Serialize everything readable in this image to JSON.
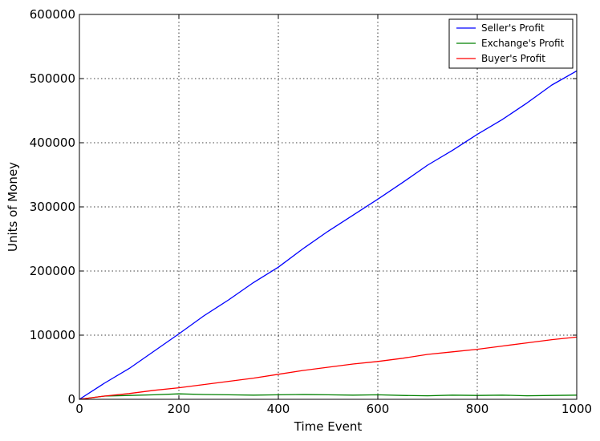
{
  "chart_data": {
    "type": "line",
    "title": "",
    "xlabel": "Time Event",
    "ylabel": "Units of Money",
    "xlim": [
      0,
      1000
    ],
    "ylim": [
      0,
      600000
    ],
    "x_ticks": [
      0,
      200,
      400,
      600,
      800,
      1000
    ],
    "y_ticks": [
      0,
      100000,
      200000,
      300000,
      400000,
      500000,
      600000
    ],
    "x_tick_labels": [
      "0",
      "200",
      "400",
      "600",
      "800",
      "1000"
    ],
    "y_tick_labels": [
      "0",
      "100000",
      "200000",
      "300000",
      "400000",
      "500000",
      "600000"
    ],
    "grid": true,
    "legend_position": "top-right",
    "x": [
      0,
      50,
      100,
      150,
      200,
      250,
      300,
      350,
      400,
      450,
      500,
      550,
      600,
      650,
      700,
      750,
      800,
      850,
      900,
      950,
      1000
    ],
    "series": [
      {
        "name": "Seller's Profit",
        "color": "#0000ff",
        "values": [
          0,
          25000,
          48000,
          75000,
          102000,
          130000,
          155000,
          182000,
          206000,
          235000,
          262000,
          287000,
          312000,
          338000,
          365000,
          388000,
          413000,
          436000,
          462000,
          490000,
          512000
        ]
      },
      {
        "name": "Exchange's Profit",
        "color": "#008000",
        "values": [
          0,
          5000,
          6000,
          7000,
          8500,
          7500,
          7000,
          6500,
          7000,
          7500,
          7000,
          6500,
          7000,
          6000,
          5500,
          6500,
          6000,
          6500,
          5500,
          6000,
          6500
        ]
      },
      {
        "name": "Buyer's Profit",
        "color": "#ff0000",
        "values": [
          0,
          5000,
          9000,
          14000,
          18000,
          23000,
          28000,
          33000,
          39000,
          45000,
          50000,
          55000,
          59000,
          64000,
          70000,
          74000,
          78000,
          83000,
          88000,
          93000,
          97000
        ]
      }
    ]
  }
}
